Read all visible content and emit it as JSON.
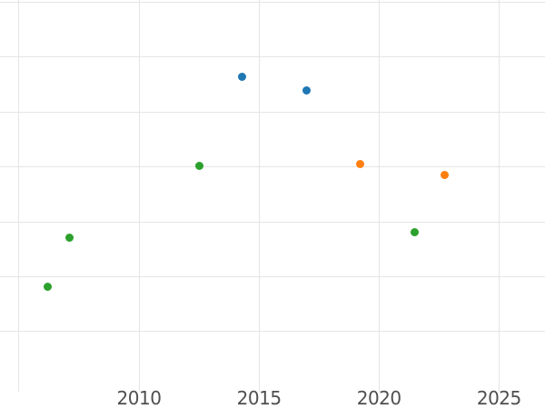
{
  "chart_data": {
    "type": "scatter",
    "title": "",
    "xlabel": "",
    "ylabel": "",
    "legend_position": "none",
    "x_ticks": [
      {
        "year": 2005,
        "label": ""
      },
      {
        "year": 2010,
        "label": "2010"
      },
      {
        "year": 2015,
        "label": "2015"
      },
      {
        "year": 2020,
        "label": "2020"
      },
      {
        "year": 2025,
        "label": "2025"
      }
    ],
    "y_gridline_units": [
      1,
      2,
      3,
      4,
      5,
      6,
      7
    ],
    "y_tick_labels": [],
    "series": [
      {
        "name": "blue",
        "color": "#1f77b4",
        "points": [
          {
            "x": 2014.3,
            "y": 5.64
          },
          {
            "x": 2017.0,
            "y": 5.39
          }
        ]
      },
      {
        "name": "orange",
        "color": "#ff7f0e",
        "points": [
          {
            "x": 2019.2,
            "y": 4.06
          },
          {
            "x": 2022.75,
            "y": 3.86
          }
        ]
      },
      {
        "name": "green",
        "color": "#2ca02c",
        "points": [
          {
            "x": 2006.2,
            "y": 1.82
          },
          {
            "x": 2007.1,
            "y": 2.71
          },
          {
            "x": 2012.5,
            "y": 4.02
          },
          {
            "x": 2021.5,
            "y": 2.81
          }
        ]
      }
    ],
    "axes": {
      "x_range_years": [
        2004.21,
        2026.92
      ],
      "y_range_units": [
        -0.41,
        7.04
      ],
      "grid": true,
      "marker_size_px": 9
    },
    "colors": {
      "background": "#ffffff",
      "grid": "#e5e5e5",
      "tick_label": "#4f4f4f",
      "blue": "#1f77b4",
      "orange": "#ff7f0e",
      "green": "#2ca02c"
    }
  }
}
